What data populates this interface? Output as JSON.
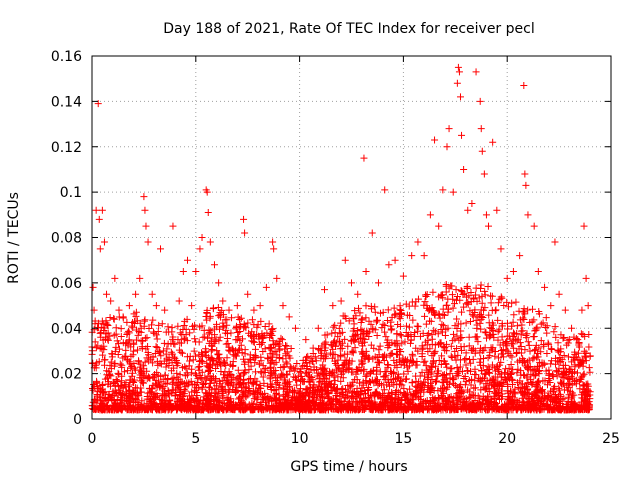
{
  "chart_data": {
    "type": "scatter",
    "title": "Day 188 of 2021, Rate Of TEC Index for receiver pecl",
    "xlabel": "GPS time / hours",
    "ylabel": "ROTI / TECUs",
    "xlim": [
      0,
      25
    ],
    "ylim": [
      0,
      0.16
    ],
    "x_ticks": [
      0,
      5,
      10,
      15,
      20,
      25
    ],
    "x_tick_labels": [
      "0",
      "5",
      "10",
      "15",
      "20",
      "25"
    ],
    "y_ticks": [
      0,
      0.02,
      0.04,
      0.06,
      0.08,
      0.1,
      0.12,
      0.14,
      0.16
    ],
    "y_tick_labels": [
      "0",
      "0.02",
      "0.04",
      "0.06",
      "0.08",
      "0.1",
      "0.12",
      "0.14",
      "0.16"
    ],
    "grid": true,
    "marker": "+",
    "color": "#ff0000",
    "points": [
      [
        0.05,
        0.058
      ],
      [
        0.1,
        0.048
      ],
      [
        0.2,
        0.092
      ],
      [
        0.3,
        0.139
      ],
      [
        0.35,
        0.088
      ],
      [
        0.4,
        0.075
      ],
      [
        0.5,
        0.092
      ],
      [
        0.6,
        0.078
      ],
      [
        0.7,
        0.055
      ],
      [
        0.9,
        0.052
      ],
      [
        1.1,
        0.062
      ],
      [
        1.3,
        0.048
      ],
      [
        1.5,
        0.045
      ],
      [
        1.8,
        0.05
      ],
      [
        2.1,
        0.055
      ],
      [
        2.3,
        0.062
      ],
      [
        2.5,
        0.098
      ],
      [
        2.55,
        0.092
      ],
      [
        2.6,
        0.085
      ],
      [
        2.7,
        0.078
      ],
      [
        2.9,
        0.055
      ],
      [
        3.1,
        0.05
      ],
      [
        3.3,
        0.075
      ],
      [
        3.5,
        0.048
      ],
      [
        3.9,
        0.085
      ],
      [
        4.2,
        0.052
      ],
      [
        4.4,
        0.065
      ],
      [
        4.6,
        0.07
      ],
      [
        4.8,
        0.05
      ],
      [
        5.0,
        0.065
      ],
      [
        5.2,
        0.075
      ],
      [
        5.3,
        0.08
      ],
      [
        5.5,
        0.101
      ],
      [
        5.55,
        0.1
      ],
      [
        5.6,
        0.091
      ],
      [
        5.7,
        0.078
      ],
      [
        5.9,
        0.068
      ],
      [
        6.1,
        0.06
      ],
      [
        6.3,
        0.052
      ],
      [
        6.6,
        0.048
      ],
      [
        7.0,
        0.05
      ],
      [
        7.3,
        0.088
      ],
      [
        7.35,
        0.082
      ],
      [
        7.5,
        0.055
      ],
      [
        7.8,
        0.048
      ],
      [
        8.1,
        0.05
      ],
      [
        8.4,
        0.058
      ],
      [
        8.7,
        0.078
      ],
      [
        8.75,
        0.075
      ],
      [
        8.9,
        0.062
      ],
      [
        9.2,
        0.05
      ],
      [
        9.5,
        0.045
      ],
      [
        9.8,
        0.04
      ],
      [
        10.3,
        0.035
      ],
      [
        10.9,
        0.04
      ],
      [
        11.2,
        0.057
      ],
      [
        11.6,
        0.05
      ],
      [
        12.0,
        0.052
      ],
      [
        12.2,
        0.07
      ],
      [
        12.5,
        0.06
      ],
      [
        12.8,
        0.055
      ],
      [
        13.1,
        0.115
      ],
      [
        13.2,
        0.065
      ],
      [
        13.5,
        0.082
      ],
      [
        13.8,
        0.06
      ],
      [
        14.1,
        0.101
      ],
      [
        14.3,
        0.068
      ],
      [
        14.6,
        0.07
      ],
      [
        15.0,
        0.063
      ],
      [
        15.4,
        0.072
      ],
      [
        15.7,
        0.078
      ],
      [
        16.0,
        0.072
      ],
      [
        16.3,
        0.09
      ],
      [
        16.5,
        0.123
      ],
      [
        16.7,
        0.085
      ],
      [
        16.9,
        0.101
      ],
      [
        17.1,
        0.12
      ],
      [
        17.2,
        0.128
      ],
      [
        17.4,
        0.1
      ],
      [
        17.6,
        0.148
      ],
      [
        17.65,
        0.155
      ],
      [
        17.7,
        0.153
      ],
      [
        17.75,
        0.142
      ],
      [
        17.8,
        0.125
      ],
      [
        17.9,
        0.11
      ],
      [
        18.1,
        0.092
      ],
      [
        18.3,
        0.095
      ],
      [
        18.5,
        0.153
      ],
      [
        18.7,
        0.14
      ],
      [
        18.75,
        0.128
      ],
      [
        18.8,
        0.118
      ],
      [
        18.9,
        0.108
      ],
      [
        19.0,
        0.09
      ],
      [
        19.1,
        0.085
      ],
      [
        19.3,
        0.122
      ],
      [
        19.5,
        0.092
      ],
      [
        19.7,
        0.075
      ],
      [
        20.0,
        0.062
      ],
      [
        20.3,
        0.065
      ],
      [
        20.6,
        0.072
      ],
      [
        20.8,
        0.147
      ],
      [
        20.85,
        0.108
      ],
      [
        20.9,
        0.103
      ],
      [
        21.0,
        0.09
      ],
      [
        21.3,
        0.085
      ],
      [
        21.5,
        0.065
      ],
      [
        21.8,
        0.058
      ],
      [
        22.1,
        0.05
      ],
      [
        22.3,
        0.078
      ],
      [
        22.5,
        0.055
      ],
      [
        22.8,
        0.048
      ],
      [
        23.1,
        0.04
      ],
      [
        23.4,
        0.035
      ],
      [
        23.6,
        0.048
      ],
      [
        23.7,
        0.085
      ],
      [
        23.8,
        0.062
      ],
      [
        23.9,
        0.05
      ]
    ],
    "dense_band": {
      "x_range": [
        0,
        24
      ],
      "envelope": [
        [
          0,
          0.045
        ],
        [
          1,
          0.045
        ],
        [
          2,
          0.048
        ],
        [
          3,
          0.045
        ],
        [
          4,
          0.042
        ],
        [
          5,
          0.05
        ],
        [
          6,
          0.05
        ],
        [
          7,
          0.045
        ],
        [
          8,
          0.045
        ],
        [
          9,
          0.04
        ],
        [
          10,
          0.025
        ],
        [
          11,
          0.035
        ],
        [
          12,
          0.045
        ],
        [
          13,
          0.05
        ],
        [
          14,
          0.05
        ],
        [
          15,
          0.05
        ],
        [
          16,
          0.055
        ],
        [
          17,
          0.06
        ],
        [
          18,
          0.06
        ],
        [
          19,
          0.06
        ],
        [
          20,
          0.055
        ],
        [
          21,
          0.05
        ],
        [
          22,
          0.045
        ],
        [
          23,
          0.035
        ],
        [
          24,
          0.04
        ]
      ],
      "floor": 0.004
    }
  }
}
